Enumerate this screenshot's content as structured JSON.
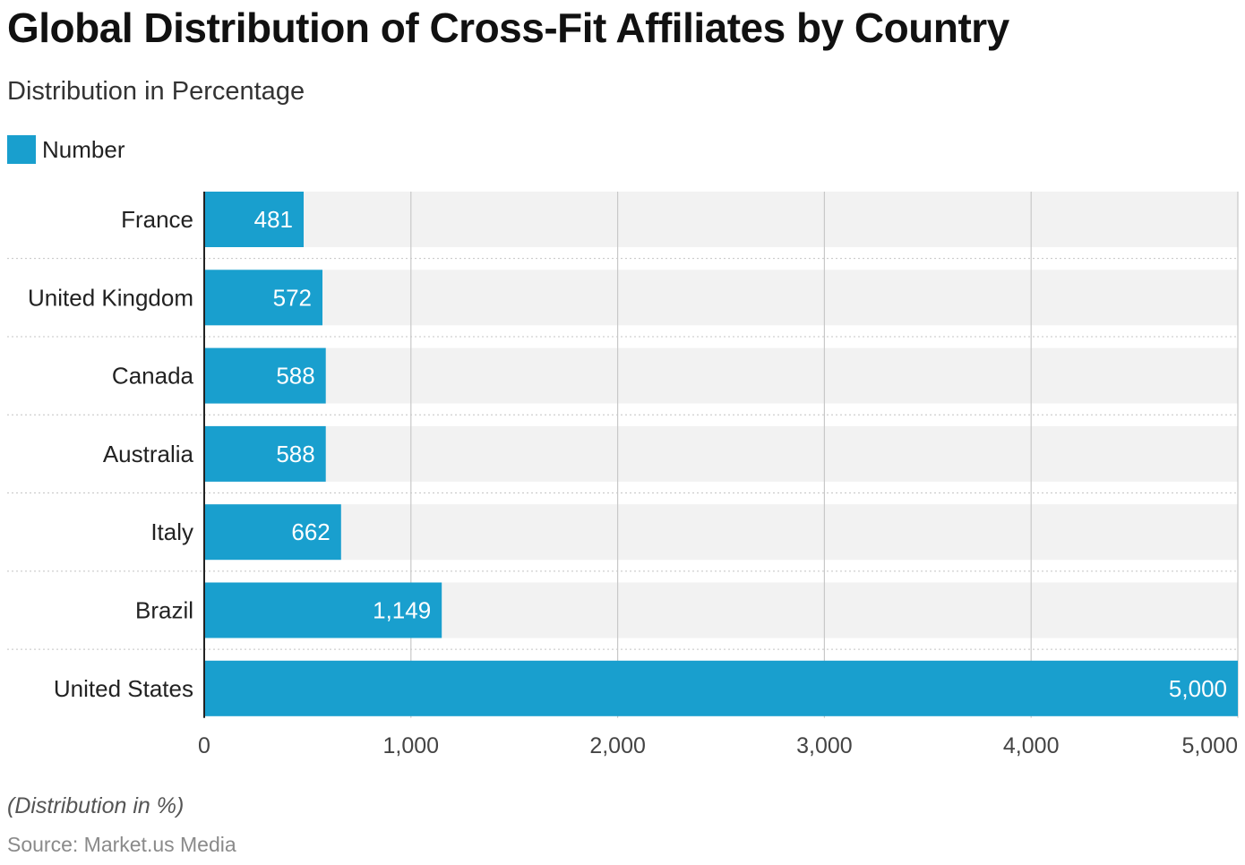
{
  "title": "Global Distribution of Cross-Fit Affiliates by Country",
  "subtitle": "Distribution in Percentage",
  "footnote": "(Distribution in %)",
  "source": "Source: Market.us Media",
  "colors": {
    "bar": "#199fce",
    "track": "#f2f2f2",
    "grid": "#c8c8c8"
  },
  "chart_data": {
    "type": "bar",
    "orientation": "horizontal",
    "title": "Global Distribution of Cross-Fit Affiliates by Country",
    "subtitle": "Distribution in Percentage",
    "categories": [
      "France",
      "United Kingdom",
      "Canada",
      "Australia",
      "Italy",
      "Brazil",
      "United States"
    ],
    "series": [
      {
        "name": "Number",
        "values": [
          481,
          572,
          588,
          588,
          662,
          1149,
          5000
        ],
        "labels": [
          "481",
          "572",
          "588",
          "588",
          "662",
          "1,149",
          "5,000"
        ]
      }
    ],
    "xlim": [
      0,
      5000
    ],
    "xticks": [
      0,
      1000,
      2000,
      3000,
      4000,
      5000
    ],
    "xtick_labels": [
      "0",
      "1,000",
      "2,000",
      "3,000",
      "4,000",
      "5,000"
    ],
    "grid": true,
    "legend": "top-left"
  }
}
